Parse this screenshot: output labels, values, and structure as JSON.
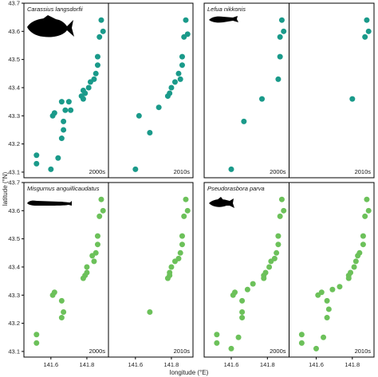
{
  "colors": {
    "teal": "#1a9a8a",
    "green": "#6cc15a",
    "frame": "#000000",
    "silhouette": "#000000"
  },
  "chart_data": {
    "type": "scatter",
    "xlabel": "longitude (°E)",
    "ylabel": "latitude (°N)",
    "xlim": [
      141.45,
      141.92
    ],
    "ylim": [
      43.08,
      43.7
    ],
    "xticks": [
      141.6,
      141.8
    ],
    "xtick_labels": [
      "141.6",
      "141.8"
    ],
    "yticks": [
      43.1,
      43.2,
      43.3,
      43.4,
      43.5,
      43.6,
      43.7
    ],
    "ytick_labels": [
      "43.1",
      "43.2",
      "43.3",
      "43.4",
      "43.5",
      "43.6",
      "43.7"
    ],
    "decades": [
      "2000s",
      "2010s"
    ],
    "grid": false,
    "species": [
      {
        "name": "Carassius langsdorfii",
        "color": "teal",
        "icon": "carp-silhouette-icon",
        "panels": [
          {
            "decade": "2000s",
            "points": [
              {
                "x": 141.88,
                "y": 43.64
              },
              {
                "x": 141.89,
                "y": 43.6
              },
              {
                "x": 141.87,
                "y": 43.58
              },
              {
                "x": 141.86,
                "y": 43.51
              },
              {
                "x": 141.86,
                "y": 43.48
              },
              {
                "x": 141.85,
                "y": 43.45
              },
              {
                "x": 141.84,
                "y": 43.43
              },
              {
                "x": 141.82,
                "y": 43.42
              },
              {
                "x": 141.81,
                "y": 43.4
              },
              {
                "x": 141.79,
                "y": 43.38
              },
              {
                "x": 141.78,
                "y": 43.39
              },
              {
                "x": 141.77,
                "y": 43.37
              },
              {
                "x": 141.78,
                "y": 43.36
              },
              {
                "x": 141.7,
                "y": 43.35
              },
              {
                "x": 141.66,
                "y": 43.35
              },
              {
                "x": 141.71,
                "y": 43.32
              },
              {
                "x": 141.68,
                "y": 43.32
              },
              {
                "x": 141.62,
                "y": 43.31
              },
              {
                "x": 141.61,
                "y": 43.3
              },
              {
                "x": 141.67,
                "y": 43.28
              },
              {
                "x": 141.67,
                "y": 43.25
              },
              {
                "x": 141.66,
                "y": 43.22
              },
              {
                "x": 141.52,
                "y": 43.16
              },
              {
                "x": 141.64,
                "y": 43.15
              },
              {
                "x": 141.52,
                "y": 43.13
              },
              {
                "x": 141.6,
                "y": 43.11
              }
            ]
          },
          {
            "decade": "2010s",
            "points": [
              {
                "x": 141.88,
                "y": 43.64
              },
              {
                "x": 141.89,
                "y": 43.59
              },
              {
                "x": 141.87,
                "y": 43.58
              },
              {
                "x": 141.86,
                "y": 43.51
              },
              {
                "x": 141.86,
                "y": 43.48
              },
              {
                "x": 141.84,
                "y": 43.45
              },
              {
                "x": 141.82,
                "y": 43.42
              },
              {
                "x": 141.85,
                "y": 43.43
              },
              {
                "x": 141.8,
                "y": 43.4
              },
              {
                "x": 141.79,
                "y": 43.38
              },
              {
                "x": 141.78,
                "y": 43.37
              },
              {
                "x": 141.73,
                "y": 43.33
              },
              {
                "x": 141.62,
                "y": 43.3
              },
              {
                "x": 141.68,
                "y": 43.24
              },
              {
                "x": 141.6,
                "y": 43.11
              }
            ]
          }
        ]
      },
      {
        "name": "Lefua nikkonis",
        "color": "teal",
        "icon": "loach-silhouette-icon",
        "panels": [
          {
            "decade": "2000s",
            "points": [
              {
                "x": 141.88,
                "y": 43.64
              },
              {
                "x": 141.89,
                "y": 43.6
              },
              {
                "x": 141.87,
                "y": 43.58
              },
              {
                "x": 141.87,
                "y": 43.51
              },
              {
                "x": 141.86,
                "y": 43.43
              },
              {
                "x": 141.77,
                "y": 43.36
              },
              {
                "x": 141.67,
                "y": 43.28
              },
              {
                "x": 141.6,
                "y": 43.11
              }
            ]
          },
          {
            "decade": "2010s",
            "points": [
              {
                "x": 141.88,
                "y": 43.64
              },
              {
                "x": 141.89,
                "y": 43.6
              },
              {
                "x": 141.87,
                "y": 43.58
              },
              {
                "x": 141.8,
                "y": 43.36
              }
            ]
          }
        ]
      },
      {
        "name": "Misgurnus anguillicaudatus",
        "color": "green",
        "icon": "eel-loach-silhouette-icon",
        "panels": [
          {
            "decade": "2000s",
            "points": [
              {
                "x": 141.88,
                "y": 43.64
              },
              {
                "x": 141.89,
                "y": 43.6
              },
              {
                "x": 141.87,
                "y": 43.58
              },
              {
                "x": 141.86,
                "y": 43.51
              },
              {
                "x": 141.86,
                "y": 43.48
              },
              {
                "x": 141.85,
                "y": 43.45
              },
              {
                "x": 141.83,
                "y": 43.44
              },
              {
                "x": 141.84,
                "y": 43.42
              },
              {
                "x": 141.8,
                "y": 43.4
              },
              {
                "x": 141.8,
                "y": 43.38
              },
              {
                "x": 141.79,
                "y": 43.37
              },
              {
                "x": 141.78,
                "y": 43.36
              },
              {
                "x": 141.62,
                "y": 43.31
              },
              {
                "x": 141.61,
                "y": 43.3
              },
              {
                "x": 141.66,
                "y": 43.28
              },
              {
                "x": 141.67,
                "y": 43.24
              },
              {
                "x": 141.66,
                "y": 43.22
              },
              {
                "x": 141.52,
                "y": 43.16
              },
              {
                "x": 141.52,
                "y": 43.13
              }
            ]
          },
          {
            "decade": "2010s",
            "points": [
              {
                "x": 141.88,
                "y": 43.64
              },
              {
                "x": 141.89,
                "y": 43.6
              },
              {
                "x": 141.87,
                "y": 43.58
              },
              {
                "x": 141.86,
                "y": 43.51
              },
              {
                "x": 141.86,
                "y": 43.48
              },
              {
                "x": 141.85,
                "y": 43.45
              },
              {
                "x": 141.84,
                "y": 43.43
              },
              {
                "x": 141.82,
                "y": 43.42
              },
              {
                "x": 141.8,
                "y": 43.4
              },
              {
                "x": 141.79,
                "y": 43.38
              },
              {
                "x": 141.79,
                "y": 43.37
              },
              {
                "x": 141.78,
                "y": 43.36
              },
              {
                "x": 141.68,
                "y": 43.24
              }
            ]
          }
        ]
      },
      {
        "name": "Pseudorasbora parva",
        "color": "green",
        "icon": "minnow-silhouette-icon",
        "panels": [
          {
            "decade": "2000s",
            "points": [
              {
                "x": 141.88,
                "y": 43.64
              },
              {
                "x": 141.89,
                "y": 43.6
              },
              {
                "x": 141.87,
                "y": 43.58
              },
              {
                "x": 141.86,
                "y": 43.51
              },
              {
                "x": 141.86,
                "y": 43.48
              },
              {
                "x": 141.85,
                "y": 43.45
              },
              {
                "x": 141.84,
                "y": 43.43
              },
              {
                "x": 141.82,
                "y": 43.42
              },
              {
                "x": 141.81,
                "y": 43.4
              },
              {
                "x": 141.79,
                "y": 43.38
              },
              {
                "x": 141.78,
                "y": 43.37
              },
              {
                "x": 141.78,
                "y": 43.36
              },
              {
                "x": 141.72,
                "y": 43.34
              },
              {
                "x": 141.69,
                "y": 43.32
              },
              {
                "x": 141.62,
                "y": 43.31
              },
              {
                "x": 141.61,
                "y": 43.3
              },
              {
                "x": 141.66,
                "y": 43.28
              },
              {
                "x": 141.66,
                "y": 43.24
              },
              {
                "x": 141.66,
                "y": 43.22
              },
              {
                "x": 141.52,
                "y": 43.16
              },
              {
                "x": 141.64,
                "y": 43.15
              },
              {
                "x": 141.52,
                "y": 43.13
              },
              {
                "x": 141.6,
                "y": 43.11
              }
            ]
          },
          {
            "decade": "2010s",
            "points": [
              {
                "x": 141.88,
                "y": 43.64
              },
              {
                "x": 141.89,
                "y": 43.6
              },
              {
                "x": 141.87,
                "y": 43.58
              },
              {
                "x": 141.86,
                "y": 43.51
              },
              {
                "x": 141.86,
                "y": 43.48
              },
              {
                "x": 141.84,
                "y": 43.45
              },
              {
                "x": 141.83,
                "y": 43.44
              },
              {
                "x": 141.82,
                "y": 43.42
              },
              {
                "x": 141.81,
                "y": 43.4
              },
              {
                "x": 141.79,
                "y": 43.38
              },
              {
                "x": 141.78,
                "y": 43.37
              },
              {
                "x": 141.78,
                "y": 43.36
              },
              {
                "x": 141.73,
                "y": 43.33
              },
              {
                "x": 141.69,
                "y": 43.32
              },
              {
                "x": 141.63,
                "y": 43.31
              },
              {
                "x": 141.61,
                "y": 43.3
              },
              {
                "x": 141.66,
                "y": 43.28
              },
              {
                "x": 141.67,
                "y": 43.25
              },
              {
                "x": 141.66,
                "y": 43.22
              },
              {
                "x": 141.52,
                "y": 43.16
              },
              {
                "x": 141.64,
                "y": 43.15
              },
              {
                "x": 141.52,
                "y": 43.13
              },
              {
                "x": 141.6,
                "y": 43.11
              }
            ]
          }
        ]
      }
    ]
  }
}
